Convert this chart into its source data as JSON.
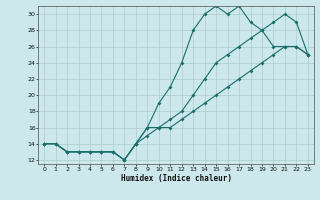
{
  "xlabel": "Humidex (Indice chaleur)",
  "background_color": "#cce8ec",
  "grid_color": "#aacccc",
  "line_color": "#1a6e6a",
  "xlim": [
    -0.5,
    23.5
  ],
  "ylim": [
    11.5,
    31
  ],
  "xticks": [
    0,
    1,
    2,
    3,
    4,
    5,
    6,
    7,
    8,
    9,
    10,
    11,
    12,
    13,
    14,
    15,
    16,
    17,
    18,
    19,
    20,
    21,
    22,
    23
  ],
  "yticks": [
    12,
    14,
    16,
    18,
    20,
    22,
    24,
    26,
    28,
    30
  ],
  "line1_x": [
    0,
    1,
    2,
    3,
    4,
    5,
    6,
    7,
    8,
    9,
    10,
    11,
    12,
    13,
    14,
    15,
    16,
    17,
    18,
    19,
    20,
    21,
    22,
    23
  ],
  "line1_y": [
    14,
    14,
    13,
    13,
    13,
    13,
    13,
    12,
    14,
    16,
    19,
    21,
    24,
    28,
    30,
    31,
    30,
    31,
    29,
    28,
    26,
    26,
    26,
    25
  ],
  "line2_x": [
    0,
    1,
    2,
    3,
    4,
    5,
    6,
    7,
    8,
    9,
    10,
    11,
    12,
    13,
    14,
    15,
    16,
    17,
    18,
    19,
    20,
    21,
    22,
    23
  ],
  "line2_y": [
    14,
    14,
    13,
    13,
    13,
    13,
    13,
    12,
    14,
    15,
    16,
    16,
    17,
    18,
    19,
    20,
    21,
    22,
    23,
    24,
    25,
    26,
    26,
    25
  ],
  "line3_x": [
    0,
    1,
    2,
    3,
    4,
    5,
    6,
    7,
    8,
    9,
    10,
    11,
    12,
    13,
    14,
    15,
    16,
    17,
    18,
    19,
    20,
    21,
    22,
    23
  ],
  "line3_y": [
    14,
    14,
    13,
    13,
    13,
    13,
    13,
    12,
    14,
    16,
    16,
    17,
    18,
    20,
    22,
    24,
    25,
    26,
    27,
    28,
    29,
    30,
    29,
    25
  ],
  "marker": "D",
  "markersize": 2.0,
  "linewidth": 0.8,
  "xlabel_fontsize": 5.5,
  "tick_fontsize": 4.5
}
